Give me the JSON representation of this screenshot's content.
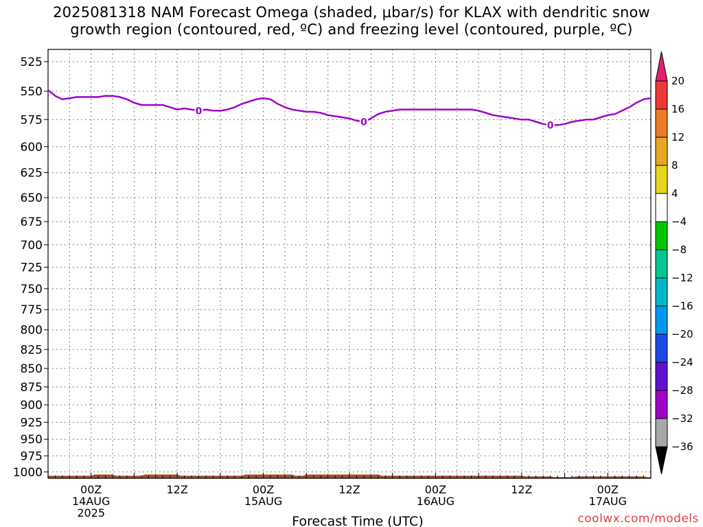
{
  "title": {
    "line1": "2025081318 NAM Forecast Omega (shaded, μbar/s) for KLAX with dendritic snow",
    "line2": "growth region (contoured, red, ºC) and freezing level (contoured, purple, ºC)"
  },
  "credit": "coolwx.com/models",
  "chart_data": {
    "type": "line",
    "xlabel": "Forecast Time (UTC)",
    "ylabel": "",
    "y_axis_scale": "pressure (inverted, log-like)",
    "ylim": [
      1010,
      515
    ],
    "y_ticks": [
      "525",
      "550",
      "575",
      "600",
      "625",
      "650",
      "675",
      "700",
      "725",
      "750",
      "775",
      "800",
      "825",
      "850",
      "875",
      "900",
      "925",
      "950",
      "975",
      "1000"
    ],
    "x_range_hours": [
      0,
      84
    ],
    "x_ticks": [
      {
        "hour": 6,
        "lines": [
          "00Z",
          "14AUG",
          "2025"
        ]
      },
      {
        "hour": 18,
        "lines": [
          "12Z"
        ]
      },
      {
        "hour": 30,
        "lines": [
          "00Z",
          "15AUG"
        ]
      },
      {
        "hour": 42,
        "lines": [
          "12Z"
        ]
      },
      {
        "hour": 54,
        "lines": [
          "00Z",
          "16AUG"
        ]
      },
      {
        "hour": 66,
        "lines": [
          "12Z"
        ]
      },
      {
        "hour": 78,
        "lines": [
          "00Z",
          "17AUG"
        ]
      }
    ],
    "grid": true,
    "series": [
      {
        "contour_label": "0",
        "color": "#a000c8",
        "points": [
          [
            0,
            549
          ],
          [
            1,
            554
          ],
          [
            2,
            557
          ],
          [
            3,
            556
          ],
          [
            4,
            555
          ],
          [
            5,
            555
          ],
          [
            6,
            555
          ],
          [
            7,
            555
          ],
          [
            8,
            554
          ],
          [
            9,
            554
          ],
          [
            10,
            555
          ],
          [
            11,
            557
          ],
          [
            12,
            560
          ],
          [
            13,
            562
          ],
          [
            14,
            562
          ],
          [
            15,
            562
          ],
          [
            16,
            562
          ],
          [
            17,
            564
          ],
          [
            18,
            566
          ],
          [
            19,
            565
          ],
          [
            20,
            566
          ],
          [
            21,
            567
          ],
          [
            22,
            566
          ],
          [
            23,
            567
          ],
          [
            24,
            567
          ],
          [
            25,
            566
          ],
          [
            26,
            564
          ],
          [
            27,
            561
          ],
          [
            28,
            559
          ],
          [
            29,
            557
          ],
          [
            30,
            556
          ],
          [
            31,
            557
          ],
          [
            32,
            561
          ],
          [
            33,
            564
          ],
          [
            34,
            566
          ],
          [
            35,
            567
          ],
          [
            36,
            568
          ],
          [
            37,
            568
          ],
          [
            38,
            569
          ],
          [
            39,
            571
          ],
          [
            40,
            572
          ],
          [
            41,
            573
          ],
          [
            42,
            574
          ],
          [
            43,
            576
          ],
          [
            44,
            577
          ],
          [
            45,
            574
          ],
          [
            46,
            570
          ],
          [
            47,
            568
          ],
          [
            48,
            567
          ],
          [
            49,
            566
          ],
          [
            50,
            566
          ],
          [
            51,
            566
          ],
          [
            52,
            566
          ],
          [
            53,
            566
          ],
          [
            54,
            566
          ],
          [
            55,
            566
          ],
          [
            56,
            566
          ],
          [
            57,
            566
          ],
          [
            58,
            566
          ],
          [
            59,
            566
          ],
          [
            60,
            567
          ],
          [
            61,
            569
          ],
          [
            62,
            571
          ],
          [
            63,
            572
          ],
          [
            64,
            573
          ],
          [
            65,
            574
          ],
          [
            66,
            575
          ],
          [
            67,
            575
          ],
          [
            68,
            577
          ],
          [
            69,
            579
          ],
          [
            70,
            580
          ],
          [
            71,
            580
          ],
          [
            72,
            579
          ],
          [
            73,
            577
          ],
          [
            74,
            576
          ],
          [
            75,
            575
          ],
          [
            76,
            575
          ],
          [
            77,
            573
          ],
          [
            78,
            571
          ],
          [
            79,
            570
          ],
          [
            80,
            567
          ],
          [
            81,
            564
          ],
          [
            82,
            560
          ],
          [
            83,
            557
          ],
          [
            84,
            556
          ]
        ]
      }
    ],
    "terrain": {
      "color": "#a0522d",
      "top_pressure": [
        [
          0,
          1006
        ],
        [
          6,
          1006
        ],
        [
          6.5,
          1004
        ],
        [
          9,
          1004
        ],
        [
          9.5,
          1006
        ],
        [
          13,
          1006
        ],
        [
          13.5,
          1004
        ],
        [
          18,
          1004
        ],
        [
          18.5,
          1006
        ],
        [
          27,
          1006
        ],
        [
          27.5,
          1004
        ],
        [
          34,
          1004
        ],
        [
          34.5,
          1006
        ],
        [
          35.5,
          1006
        ],
        [
          36,
          1004
        ],
        [
          46,
          1004
        ],
        [
          46.5,
          1006
        ],
        [
          66,
          1006
        ],
        [
          66.5,
          1007
        ],
        [
          70,
          1007
        ],
        [
          70.5,
          1008
        ],
        [
          73,
          1008
        ],
        [
          73.5,
          1007
        ],
        [
          83,
          1007
        ],
        [
          83.5,
          1008
        ],
        [
          84,
          1008
        ]
      ]
    },
    "colorbar": {
      "labels": [
        "20",
        "16",
        "12",
        "8",
        "4",
        "−4",
        "−8",
        "−12",
        "−16",
        "−20",
        "−24",
        "−28",
        "−32",
        "−36"
      ],
      "colors": [
        "#e0206c",
        "#ee3838",
        "#ee7a24",
        "#e6a820",
        "#e6d620",
        "#ffffff",
        "#00c800",
        "#00c890",
        "#00b8c8",
        "#0098ee",
        "#1a4ae6",
        "#6010d0",
        "#a000c8",
        "#a8a8a8",
        "#000000"
      ]
    }
  }
}
